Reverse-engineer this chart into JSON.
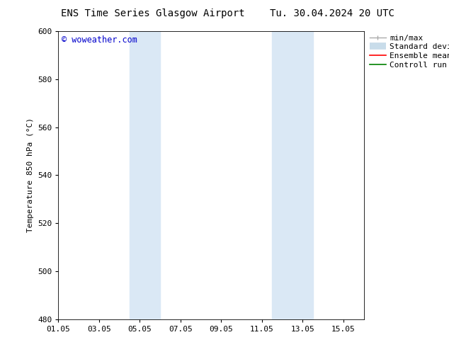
{
  "title_left": "ENS Time Series Glasgow Airport",
  "title_right": "Tu. 30.04.2024 20 UTC",
  "ylabel": "Temperature 850 hPa (°C)",
  "ylim": [
    480,
    600
  ],
  "yticks": [
    480,
    500,
    520,
    540,
    560,
    580,
    600
  ],
  "xtick_labels": [
    "01.05",
    "03.05",
    "05.05",
    "07.05",
    "09.05",
    "11.05",
    "13.05",
    "15.05"
  ],
  "xtick_positions": [
    0,
    2,
    4,
    6,
    8,
    10,
    12,
    14
  ],
  "xlim": [
    0,
    15
  ],
  "shaded_bands": [
    {
      "x_start": 3.5,
      "x_end": 5.0,
      "color": "#dae8f5"
    },
    {
      "x_start": 10.5,
      "x_end": 12.5,
      "color": "#dae8f5"
    }
  ],
  "watermark_text": "© woweather.com",
  "watermark_color": "#0000cc",
  "bg_color": "#ffffff",
  "plot_bg_color": "#ffffff",
  "title_fontsize": 10,
  "axis_label_fontsize": 8,
  "tick_fontsize": 8,
  "legend_fontsize": 8,
  "minmax_color": "#aaaaaa",
  "stddev_color": "#c8dcea",
  "ensemble_color": "#ff0000",
  "control_color": "#008000"
}
